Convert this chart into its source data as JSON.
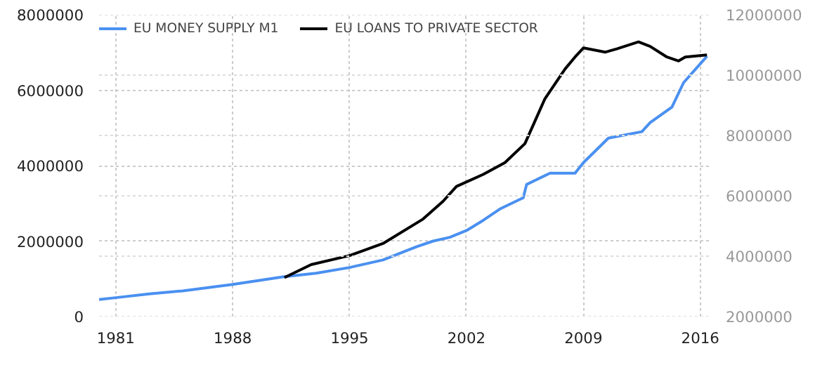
{
  "chart_data": {
    "type": "line",
    "xlim": [
      1980,
      2016.6
    ],
    "xticks": [
      1981,
      1988,
      1995,
      2002,
      2009,
      2016
    ],
    "ylim": [
      0,
      8000000
    ],
    "yticks": [
      0,
      2000000,
      4000000,
      6000000,
      8000000
    ],
    "y2lim": [
      2000000,
      12000000
    ],
    "y2ticks": [
      2000000,
      4000000,
      6000000,
      8000000,
      10000000,
      12000000
    ],
    "grid": true,
    "legend": "top left",
    "line_style": "solid",
    "marker": "none",
    "series": [
      {
        "name": "EU MONEY SUPPLY M1",
        "color": "#4a90f0",
        "x": [
          1980,
          1981,
          1983,
          1985,
          1988,
          1991,
          1993,
          1995,
          1997,
          1999,
          2000,
          2001,
          2002,
          2003,
          2004,
          2005.4,
          2005.6,
          2007,
          2008.5,
          2009,
          2010.5,
          2012.5,
          2013,
          2014.3,
          2015,
          2016.4
        ],
        "values": [
          450000,
          500000,
          600000,
          680000,
          850000,
          1050000,
          1150000,
          1300000,
          1500000,
          1850000,
          2000000,
          2100000,
          2280000,
          2550000,
          2850000,
          3150000,
          3500000,
          3800000,
          3800000,
          4080000,
          4730000,
          4900000,
          5140000,
          5550000,
          6200000,
          6900000
        ]
      },
      {
        "name": "EU LOANS TO PRIVATE SECTOR",
        "color": "#000000",
        "axis": "y2",
        "x": [
          1991.1,
          1992.7,
          1995,
          1997,
          1999.4,
          2000.6,
          2001.4,
          2003,
          2004.3,
          2005.5,
          2006.7,
          2007.9,
          2008.5,
          2009,
          2010.3,
          2011,
          2012.3,
          2013,
          2014,
          2014.7,
          2015.1,
          2016.4
        ],
        "values": [
          3290000,
          3720000,
          4020000,
          4420000,
          5230000,
          5820000,
          6310000,
          6710000,
          7100000,
          7730000,
          9220000,
          10200000,
          10600000,
          10900000,
          10760000,
          10870000,
          11100000,
          10950000,
          10600000,
          10470000,
          10600000,
          10670000
        ]
      }
    ]
  }
}
